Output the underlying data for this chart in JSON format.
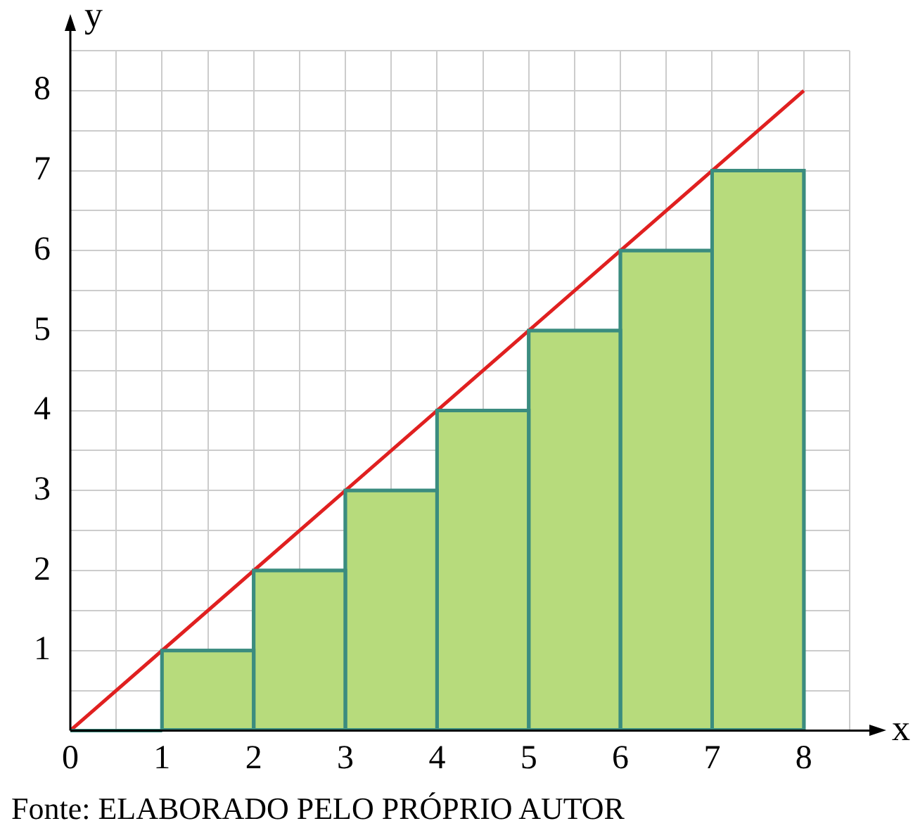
{
  "chart_data": {
    "type": "histogram",
    "xlabel": "x",
    "ylabel": "y",
    "bins": [
      0,
      1,
      2,
      3,
      4,
      5,
      6,
      7,
      8
    ],
    "values": [
      0,
      1,
      2,
      3,
      4,
      5,
      6,
      7
    ],
    "color": "#b7db7c",
    "series": [
      {
        "type": "line",
        "x": [
          0,
          8
        ],
        "values": [
          0,
          8
        ],
        "color": "#e02020"
      }
    ],
    "xlim": [
      0,
      8.5
    ],
    "ylim": [
      0,
      8.5
    ],
    "xticks": [
      0,
      {
        "value": 0.5,
        "label": null
      },
      1,
      {
        "value": 1.5,
        "label": null
      },
      2,
      {
        "value": 2.5,
        "label": null
      },
      3,
      {
        "value": 3.5,
        "label": null
      },
      4,
      {
        "value": 4.5,
        "label": null
      },
      5,
      {
        "value": 5.5,
        "label": null
      },
      6,
      {
        "value": 6.5,
        "label": null
      },
      7,
      {
        "value": 7.5,
        "label": null
      },
      8,
      {
        "value": 8.5,
        "label": null
      }
    ],
    "yticks": [
      {
        "value": 0,
        "label": null
      },
      {
        "value": 0.5,
        "label": null
      },
      1,
      {
        "value": 1.5,
        "label": null
      },
      2,
      {
        "value": 2.5,
        "label": null
      },
      3,
      {
        "value": 3.5,
        "label": null
      },
      4,
      {
        "value": 4.5,
        "label": null
      },
      5,
      {
        "value": 5.5,
        "label": null
      },
      6,
      {
        "value": 6.5,
        "label": null
      },
      7,
      {
        "value": 7.5,
        "label": null
      },
      8,
      {
        "value": 8.5,
        "label": null
      }
    ],
    "grid": true,
    "legend": false,
    "annotations": [
      "Fonte: ELABORADO PELO PRÓPRIO AUTOR"
    ]
  }
}
